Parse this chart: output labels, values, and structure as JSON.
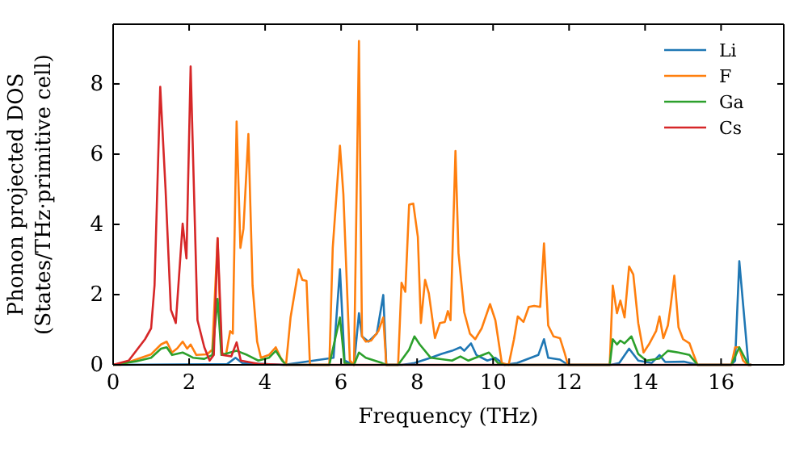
{
  "chart_data": {
    "type": "line",
    "xlabel": "Frequency (THz)",
    "ylabel": "Phonon projected DOS\n(States/THz·primitive cell)",
    "xlim": [
      0,
      17.65
    ],
    "ylim": [
      0,
      9.7
    ],
    "xticks": [
      0,
      2,
      4,
      6,
      8,
      10,
      12,
      14,
      16
    ],
    "yticks": [
      0,
      2,
      4,
      6,
      8
    ],
    "legend": "top right",
    "grid": false,
    "marker": "none",
    "line_style": "solid",
    "series": [
      {
        "name": "Li",
        "color": "#1f77b4",
        "x": [
          0,
          3.0,
          3.22,
          3.4,
          4.5,
          5.8,
          5.97,
          6.09,
          6.34,
          6.47,
          6.55,
          6.72,
          6.94,
          7.11,
          7.19,
          7.6,
          7.93,
          8.36,
          8.64,
          8.92,
          9.14,
          9.24,
          9.42,
          9.56,
          9.85,
          10.06,
          10.3,
          10.63,
          11.19,
          11.34,
          11.45,
          11.76,
          11.97,
          13.1,
          13.32,
          13.58,
          13.82,
          14.17,
          14.38,
          14.53,
          15.02,
          15.38,
          16.27,
          16.37,
          16.48,
          16.72,
          16.8
        ],
        "values": [
          0,
          0.02,
          0.2,
          0.05,
          0,
          0.2,
          2.72,
          0.12,
          0,
          1.47,
          0.81,
          0.66,
          0.89,
          1.99,
          0,
          0,
          0.05,
          0.2,
          0.31,
          0.4,
          0.5,
          0.4,
          0.61,
          0.28,
          0.12,
          0.2,
          0,
          0.05,
          0.28,
          0.73,
          0.2,
          0.15,
          0,
          0,
          0.05,
          0.46,
          0.12,
          0.05,
          0.28,
          0.08,
          0.09,
          0,
          0,
          0.12,
          2.95,
          0,
          0
        ]
      },
      {
        "name": "F",
        "color": "#ff7f0e",
        "x": [
          0,
          0.2,
          0.6,
          1.0,
          1.26,
          1.41,
          1.55,
          1.69,
          1.83,
          1.95,
          2.04,
          2.19,
          2.47,
          2.61,
          2.75,
          2.85,
          2.97,
          3.08,
          3.15,
          3.25,
          3.35,
          3.43,
          3.56,
          3.67,
          3.79,
          3.89,
          4.1,
          4.28,
          4.41,
          4.55,
          4.67,
          4.88,
          4.98,
          5.09,
          5.18,
          5.69,
          5.78,
          5.97,
          6.06,
          6.23,
          6.34,
          6.47,
          6.55,
          6.65,
          6.79,
          6.98,
          7.11,
          7.19,
          7.5,
          7.59,
          7.69,
          7.79,
          7.9,
          8.02,
          8.1,
          8.21,
          8.31,
          8.47,
          8.6,
          8.73,
          8.81,
          8.88,
          9.01,
          9.09,
          9.24,
          9.39,
          9.53,
          9.7,
          9.92,
          10.06,
          10.23,
          10.41,
          10.55,
          10.65,
          10.8,
          10.94,
          11.08,
          11.24,
          11.34,
          11.45,
          11.59,
          11.76,
          11.88,
          11.97,
          13.07,
          13.15,
          13.26,
          13.35,
          13.46,
          13.58,
          13.69,
          13.82,
          13.96,
          14.1,
          14.29,
          14.38,
          14.48,
          14.6,
          14.67,
          14.77,
          14.88,
          15.0,
          15.17,
          15.28,
          15.38,
          16.27,
          16.37,
          16.47,
          16.58,
          16.7,
          16.8
        ],
        "values": [
          0,
          0,
          0.15,
          0.3,
          0.58,
          0.66,
          0.35,
          0.47,
          0.66,
          0.46,
          0.58,
          0.28,
          0.3,
          0.43,
          3.6,
          0.35,
          0.28,
          0.96,
          0.89,
          6.93,
          3.33,
          3.87,
          6.57,
          2.26,
          0.66,
          0.2,
          0.28,
          0.5,
          0.2,
          0,
          1.35,
          2.72,
          2.42,
          2.39,
          0,
          0,
          3.33,
          6.24,
          4.86,
          0.12,
          0,
          9.22,
          0.81,
          0.66,
          0.69,
          0.96,
          1.35,
          0,
          0,
          2.34,
          2.08,
          4.56,
          4.59,
          3.64,
          1.19,
          2.42,
          2.03,
          0.76,
          1.19,
          1.22,
          1.53,
          1.27,
          6.09,
          3.18,
          1.5,
          0.89,
          0.73,
          1.04,
          1.73,
          1.27,
          0.05,
          0,
          0.73,
          1.38,
          1.22,
          1.65,
          1.68,
          1.65,
          3.46,
          1.12,
          0.81,
          0.76,
          0.35,
          0,
          0,
          2.26,
          1.47,
          1.83,
          1.35,
          2.8,
          2.57,
          1.19,
          0.35,
          0.58,
          0.96,
          1.38,
          0.76,
          1.12,
          1.65,
          2.54,
          1.07,
          0.73,
          0.61,
          0.28,
          0,
          0,
          0.5,
          0.5,
          0.12,
          0,
          0
        ]
      },
      {
        "name": "Ga",
        "color": "#2ca02c",
        "x": [
          0,
          0.6,
          1.0,
          1.26,
          1.41,
          1.55,
          1.83,
          1.97,
          2.11,
          2.4,
          2.61,
          2.75,
          2.85,
          3.25,
          3.53,
          3.82,
          4.1,
          4.28,
          4.45,
          4.55,
          5.69,
          5.97,
          6.09,
          6.34,
          6.47,
          6.65,
          7.08,
          7.19,
          7.5,
          7.79,
          7.93,
          8.07,
          8.36,
          8.92,
          9.14,
          9.35,
          9.89,
          10.13,
          10.3,
          13.07,
          13.15,
          13.26,
          13.35,
          13.46,
          13.64,
          13.82,
          14.03,
          14.38,
          14.6,
          14.88,
          15.17,
          15.38,
          16.27,
          16.48,
          16.72,
          16.8
        ],
        "values": [
          0,
          0.1,
          0.2,
          0.46,
          0.5,
          0.28,
          0.35,
          0.28,
          0.2,
          0.17,
          0.28,
          1.88,
          0.28,
          0.4,
          0.28,
          0.12,
          0.2,
          0.4,
          0.12,
          0,
          0,
          1.35,
          0.05,
          0,
          0.35,
          0.2,
          0.05,
          0,
          0,
          0.43,
          0.81,
          0.58,
          0.2,
          0.12,
          0.24,
          0.12,
          0.35,
          0.05,
          0,
          0,
          0.73,
          0.58,
          0.69,
          0.61,
          0.81,
          0.31,
          0.12,
          0.18,
          0.4,
          0.35,
          0.28,
          0,
          0,
          0.5,
          0,
          0
        ]
      },
      {
        "name": "Cs",
        "color": "#d62728",
        "x": [
          0,
          0.41,
          0.84,
          1.0,
          1.09,
          1.24,
          1.38,
          1.52,
          1.65,
          1.83,
          1.93,
          2.04,
          2.22,
          2.4,
          2.54,
          2.65,
          2.75,
          2.87,
          3.11,
          3.25,
          3.36,
          3.82,
          4.5,
          16.8
        ],
        "values": [
          0,
          0.12,
          0.73,
          1.04,
          2.26,
          7.92,
          5.0,
          1.57,
          1.19,
          4.02,
          3.03,
          8.5,
          1.27,
          0.5,
          0.12,
          0.28,
          3.61,
          0.28,
          0.24,
          0.64,
          0.12,
          0.03,
          0,
          0
        ]
      }
    ]
  }
}
